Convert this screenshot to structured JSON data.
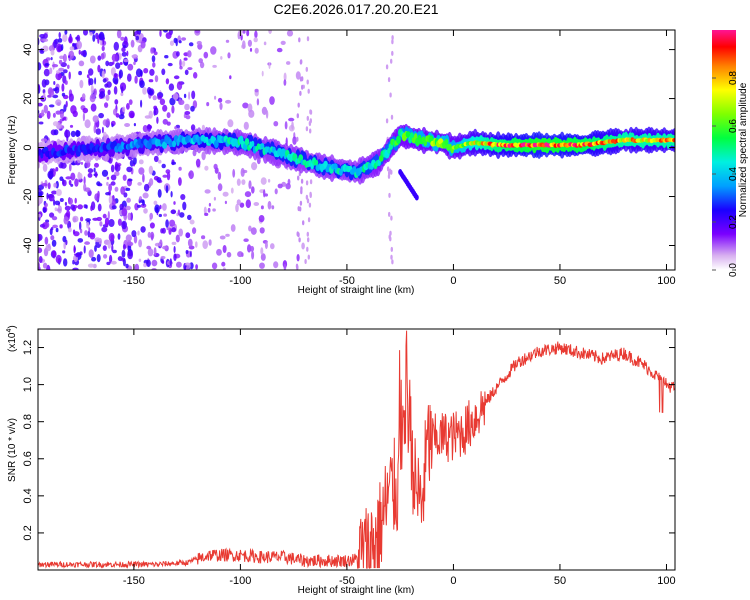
{
  "figure": {
    "title": "C2E6.2026.017.20.20.E21"
  },
  "chart_data": [
    {
      "type": "heatmap",
      "title": "C2E6.2026.017.20.20.E21",
      "xlabel": "Height of straight line (km)",
      "ylabel": "Frequency (Hz)",
      "xlim": [
        -195,
        104
      ],
      "ylim": [
        -50,
        48
      ],
      "xticks": [
        -150,
        -100,
        -50,
        0,
        50,
        100
      ],
      "yticks": [
        -40,
        -20,
        0,
        20,
        40
      ],
      "ridge": {
        "x": [
          -190,
          -160,
          -140,
          -120,
          -100,
          -80,
          -60,
          -45,
          -35,
          -25,
          -15,
          -5,
          0,
          10,
          20,
          40,
          60,
          80,
          100
        ],
        "freq": [
          -2,
          0,
          2,
          3,
          2,
          -3,
          -8,
          -10,
          -6,
          5,
          3,
          2,
          0,
          2,
          1,
          1,
          1,
          3,
          3
        ],
        "amplitude": [
          0.25,
          0.3,
          0.35,
          0.4,
          0.45,
          0.45,
          0.45,
          0.45,
          0.5,
          0.55,
          0.6,
          0.65,
          0.6,
          0.75,
          0.85,
          0.95,
          0.9,
          0.8,
          0.8
        ]
      },
      "colorbar": {
        "label": "Normalized spectral amplitude",
        "range": [
          0,
          1
        ],
        "ticks": [
          "0.0",
          "0.2",
          "0.4",
          "0.6",
          "0.8"
        ]
      }
    },
    {
      "type": "line",
      "xlabel": "Height of straight line (km)",
      "ylabel": "SNR (10 * v/v)",
      "yscale_label": "(x10",
      "yscale_exp": "4",
      "yscale_close": ")",
      "xlim": [
        -195,
        104
      ],
      "ylim": [
        0.0,
        1.3
      ],
      "xticks": [
        -150,
        -100,
        -50,
        0,
        50,
        100
      ],
      "yticks": [
        0.2,
        0.4,
        0.6,
        0.8,
        1.0,
        1.2
      ],
      "ytick_labels": [
        "0.2",
        "0.4",
        "0.6",
        "0.8",
        "1.0",
        "1.2"
      ],
      "color": "#e83a32",
      "series": [
        {
          "name": "SNR",
          "x": [
            -195,
            -180,
            -160,
            -140,
            -125,
            -115,
            -100,
            -90,
            -80,
            -70,
            -60,
            -50,
            -45,
            -40,
            -35,
            -30,
            -25,
            -22,
            -20,
            -18,
            -15,
            -12,
            -10,
            -5,
            0,
            5,
            10,
            15,
            20,
            25,
            30,
            40,
            50,
            60,
            70,
            80,
            90,
            95,
            100,
            104
          ],
          "y": [
            0.03,
            0.03,
            0.03,
            0.03,
            0.04,
            0.08,
            0.08,
            0.07,
            0.07,
            0.05,
            0.05,
            0.05,
            0.06,
            0.1,
            0.2,
            0.42,
            0.45,
            0.85,
            0.7,
            0.45,
            0.35,
            0.68,
            0.7,
            0.72,
            0.72,
            0.75,
            0.82,
            0.9,
            0.98,
            1.05,
            1.12,
            1.18,
            1.2,
            1.17,
            1.14,
            1.17,
            1.1,
            1.05,
            1.0,
            0.98
          ]
        }
      ]
    }
  ]
}
